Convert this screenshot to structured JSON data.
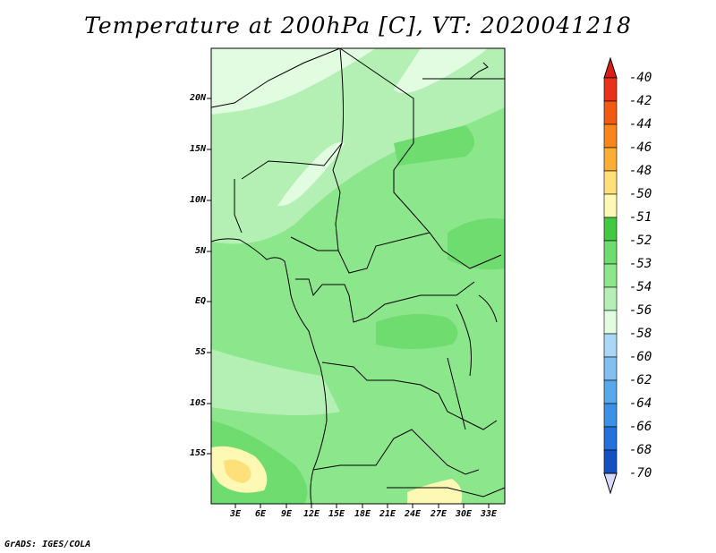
{
  "title": "Temperature at 200hPa [C], VT: 2020041218",
  "credit": "GrADS: IGES/COLA",
  "lat_labels": [
    "20N",
    "15N",
    "10N",
    "5N",
    "EQ",
    "5S",
    "10S",
    "15S"
  ],
  "lon_labels": [
    "3E",
    "6E",
    "9E",
    "12E",
    "15E",
    "18E",
    "21E",
    "24E",
    "27E",
    "30E",
    "33E"
  ],
  "colorbar": {
    "labels": [
      "-40",
      "-42",
      "-44",
      "-46",
      "-48",
      "-50",
      "-51",
      "-52",
      "-53",
      "-54",
      "-56",
      "-58",
      "-60",
      "-62",
      "-64",
      "-66",
      "-68",
      "-70"
    ],
    "colors": [
      "#e8301a",
      "#f25a12",
      "#f8861a",
      "#fbae34",
      "#fde07a",
      "#fdf8b4",
      "#43c843",
      "#6edc6e",
      "#8ce68c",
      "#b4f0b4",
      "#e2fce2",
      "#a8d8f6",
      "#82c0f2",
      "#5aa8ec",
      "#3c90e6",
      "#2470dc",
      "#1450c2",
      "#0a2a8a",
      "#0a1464"
    ],
    "top_arrow_color": "#d81e16",
    "bottom_arrow_color": "#d8d8f8"
  }
}
